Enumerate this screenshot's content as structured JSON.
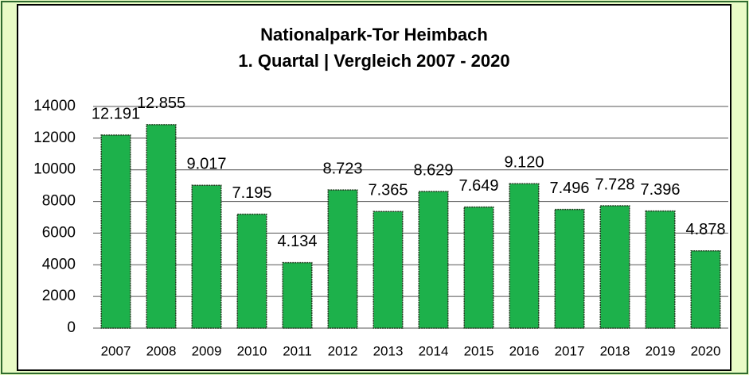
{
  "chart_data": {
    "type": "bar",
    "title": "Nationalpark-Tor Heimbach",
    "subtitle": "1. Quartal | Vergleich 2007 - 2020",
    "categories": [
      "2007",
      "2008",
      "2009",
      "2010",
      "2011",
      "2012",
      "2013",
      "2014",
      "2015",
      "2016",
      "2017",
      "2018",
      "2019",
      "2020"
    ],
    "values": [
      12191,
      12855,
      9017,
      7195,
      4134,
      8723,
      7365,
      8629,
      7649,
      9120,
      7496,
      7728,
      7396,
      4878
    ],
    "value_labels": [
      "12.191",
      "12.855",
      "9.017",
      "7.195",
      "4.134",
      "8.723",
      "7.365",
      "8.629",
      "7.649",
      "9.120",
      "7.496",
      "7.728",
      "7.396",
      "4.878"
    ],
    "color": "#1db14b",
    "ylim": [
      0,
      14000
    ],
    "yticks": [
      0,
      2000,
      4000,
      6000,
      8000,
      10000,
      12000,
      14000
    ],
    "grid": true
  }
}
